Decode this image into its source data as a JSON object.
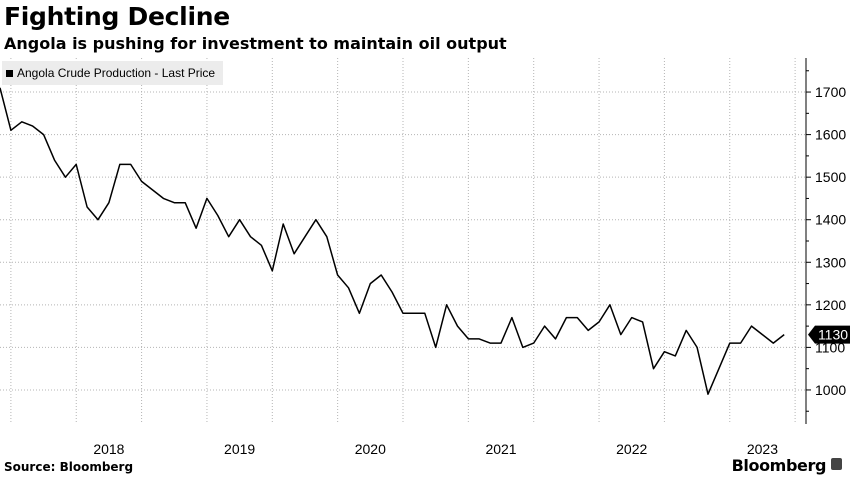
{
  "header": {
    "title": "Fighting Decline",
    "subtitle": "Angola is pushing for investment to maintain oil output"
  },
  "footer": {
    "source": "Source: Bloomberg",
    "brand": "Bloomberg"
  },
  "colors": {
    "line": "#000000",
    "grid": "#b4b4b4",
    "legend_bg": "#ececec",
    "last_price_bg": "#000000",
    "last_price_text": "#ffffff"
  },
  "chart_data": {
    "type": "line",
    "title": "Fighting Decline",
    "subtitle": "Angola is pushing for investment to maintain oil output",
    "xlabel": "",
    "ylabel": "",
    "ylim": [
      920,
      1780
    ],
    "xlim": [
      "2017-06",
      "2023-08"
    ],
    "x_ticks": [
      "2018",
      "2019",
      "2020",
      "2021",
      "2022",
      "2023"
    ],
    "y_ticks": [
      1000,
      1100,
      1200,
      1300,
      1400,
      1500,
      1600,
      1700
    ],
    "y_axis_side": "right",
    "grid": "dotted",
    "legend_position": "top-left",
    "last_value_label": "1130",
    "series": [
      {
        "name": "Angola Crude Production - Last Price",
        "color": "#000000",
        "points": [
          [
            "2017-06",
            1710
          ],
          [
            "2017-07",
            1610
          ],
          [
            "2017-08",
            1630
          ],
          [
            "2017-09",
            1620
          ],
          [
            "2017-10",
            1600
          ],
          [
            "2017-11",
            1540
          ],
          [
            "2017-12",
            1500
          ],
          [
            "2018-01",
            1530
          ],
          [
            "2018-02",
            1430
          ],
          [
            "2018-03",
            1400
          ],
          [
            "2018-04",
            1440
          ],
          [
            "2018-05",
            1530
          ],
          [
            "2018-06",
            1530
          ],
          [
            "2018-07",
            1490
          ],
          [
            "2018-08",
            1470
          ],
          [
            "2018-09",
            1450
          ],
          [
            "2018-10",
            1440
          ],
          [
            "2018-11",
            1440
          ],
          [
            "2018-12",
            1380
          ],
          [
            "2019-01",
            1450
          ],
          [
            "2019-02",
            1410
          ],
          [
            "2019-03",
            1360
          ],
          [
            "2019-04",
            1400
          ],
          [
            "2019-05",
            1360
          ],
          [
            "2019-06",
            1340
          ],
          [
            "2019-07",
            1280
          ],
          [
            "2019-08",
            1390
          ],
          [
            "2019-09",
            1320
          ],
          [
            "2019-10",
            1360
          ],
          [
            "2019-11",
            1400
          ],
          [
            "2019-12",
            1360
          ],
          [
            "2020-01",
            1270
          ],
          [
            "2020-02",
            1240
          ],
          [
            "2020-03",
            1180
          ],
          [
            "2020-04",
            1250
          ],
          [
            "2020-05",
            1270
          ],
          [
            "2020-06",
            1230
          ],
          [
            "2020-07",
            1180
          ],
          [
            "2020-08",
            1180
          ],
          [
            "2020-09",
            1180
          ],
          [
            "2020-10",
            1100
          ],
          [
            "2020-11",
            1200
          ],
          [
            "2020-12",
            1150
          ],
          [
            "2021-01",
            1120
          ],
          [
            "2021-02",
            1120
          ],
          [
            "2021-03",
            1110
          ],
          [
            "2021-04",
            1110
          ],
          [
            "2021-05",
            1170
          ],
          [
            "2021-06",
            1100
          ],
          [
            "2021-07",
            1110
          ],
          [
            "2021-08",
            1150
          ],
          [
            "2021-09",
            1120
          ],
          [
            "2021-10",
            1170
          ],
          [
            "2021-11",
            1170
          ],
          [
            "2021-12",
            1140
          ],
          [
            "2022-01",
            1160
          ],
          [
            "2022-02",
            1200
          ],
          [
            "2022-03",
            1130
          ],
          [
            "2022-04",
            1170
          ],
          [
            "2022-05",
            1160
          ],
          [
            "2022-06",
            1050
          ],
          [
            "2022-07",
            1090
          ],
          [
            "2022-08",
            1080
          ],
          [
            "2022-09",
            1140
          ],
          [
            "2022-10",
            1100
          ],
          [
            "2022-11",
            990
          ],
          [
            "2022-12",
            1050
          ],
          [
            "2023-01",
            1110
          ],
          [
            "2023-02",
            1110
          ],
          [
            "2023-03",
            1150
          ],
          [
            "2023-04",
            1130
          ],
          [
            "2023-05",
            1110
          ],
          [
            "2023-06",
            1130
          ]
        ]
      }
    ]
  }
}
